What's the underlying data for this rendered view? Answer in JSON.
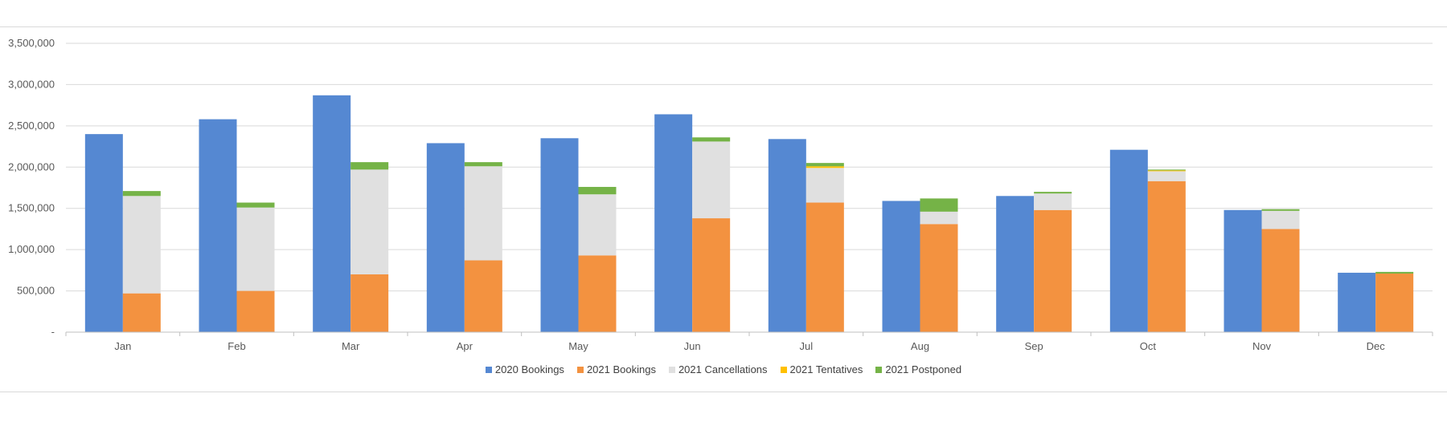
{
  "chart_data": {
    "type": "bar",
    "categories": [
      "Jan",
      "Feb",
      "Mar",
      "Apr",
      "May",
      "Jun",
      "Jul",
      "Aug",
      "Sep",
      "Oct",
      "Nov",
      "Dec"
    ],
    "ylim": [
      0,
      3500000
    ],
    "y_ticks": [
      0,
      500000,
      1000000,
      1500000,
      2000000,
      2500000,
      3000000,
      3500000
    ],
    "y_tick_labels": [
      "-",
      "500,000",
      "1,000,000",
      "1,500,000",
      "2,000,000",
      "2,500,000",
      "3,000,000",
      "3,500,000"
    ],
    "grid": true,
    "legend_position": "bottom",
    "series": [
      {
        "name": "2020 Bookings",
        "color": "#5588d2",
        "stack": "2020",
        "values": [
          2400000,
          2580000,
          2870000,
          2290000,
          2350000,
          2640000,
          2340000,
          1590000,
          1650000,
          2210000,
          1480000,
          720000
        ]
      },
      {
        "name": "2021 Bookings",
        "color": "#f39240",
        "stack": "2021",
        "values": [
          470000,
          500000,
          700000,
          870000,
          930000,
          1380000,
          1570000,
          1310000,
          1480000,
          1830000,
          1250000,
          710000
        ]
      },
      {
        "name": "2021 Cancellations",
        "color": "#e0e0e0",
        "stack": "2021",
        "values": [
          1180000,
          1010000,
          1270000,
          1140000,
          740000,
          930000,
          420000,
          150000,
          200000,
          120000,
          220000,
          0
        ]
      },
      {
        "name": "2021 Tentatives",
        "color": "#ffc000",
        "stack": "2021",
        "values": [
          0,
          0,
          0,
          0,
          0,
          0,
          20000,
          0,
          0,
          10000,
          0,
          0
        ]
      },
      {
        "name": "2021 Postponed",
        "color": "#75b347",
        "stack": "2021",
        "values": [
          60000,
          60000,
          90000,
          50000,
          90000,
          50000,
          40000,
          160000,
          20000,
          10000,
          20000,
          20000
        ]
      }
    ]
  }
}
